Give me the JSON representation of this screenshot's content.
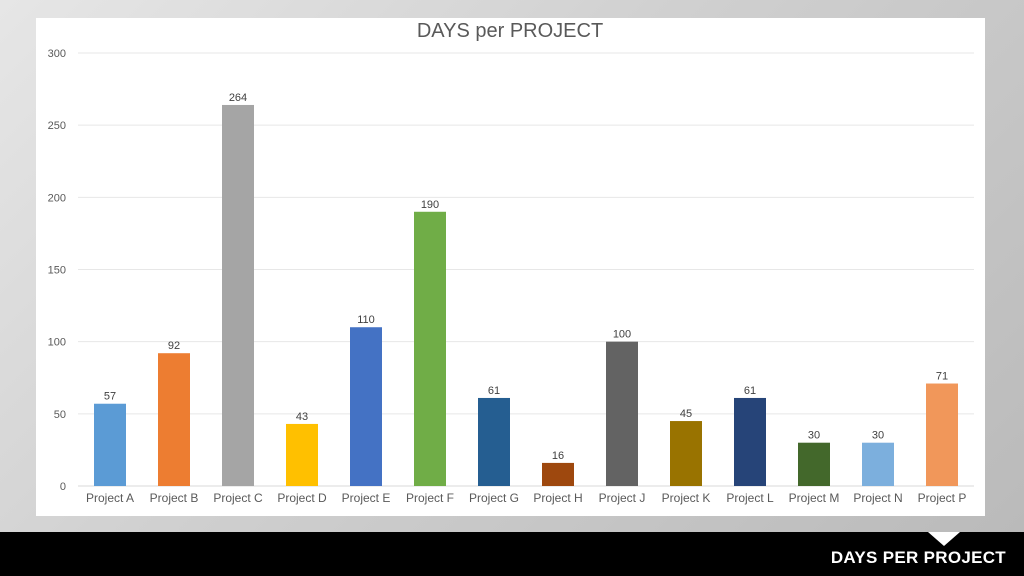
{
  "footer": {
    "title": "DAYS PER PROJECT"
  },
  "chart_data": {
    "type": "bar",
    "title": "DAYS per PROJECT",
    "xlabel": "",
    "ylabel": "",
    "ylim": [
      0,
      300
    ],
    "yticks": [
      "0",
      "50",
      "100",
      "150",
      "200",
      "250",
      "300"
    ],
    "grid": true,
    "legend": "none",
    "categories": [
      "Project A",
      "Project B",
      "Project C",
      "Project D",
      "Project E",
      "Project F",
      "Project G",
      "Project H",
      "Project J",
      "Project K",
      "Project L",
      "Project M",
      "Project N",
      "Project P"
    ],
    "values": [
      57,
      92,
      264,
      43,
      110,
      190,
      61,
      16,
      100,
      45,
      61,
      30,
      30,
      71
    ],
    "colors": [
      "#5b9bd5",
      "#ed7d31",
      "#a5a5a5",
      "#ffc000",
      "#4472c4",
      "#70ad47",
      "#255e91",
      "#9e480e",
      "#636363",
      "#997300",
      "#264478",
      "#43682b",
      "#7cafdd",
      "#f1975a"
    ]
  }
}
